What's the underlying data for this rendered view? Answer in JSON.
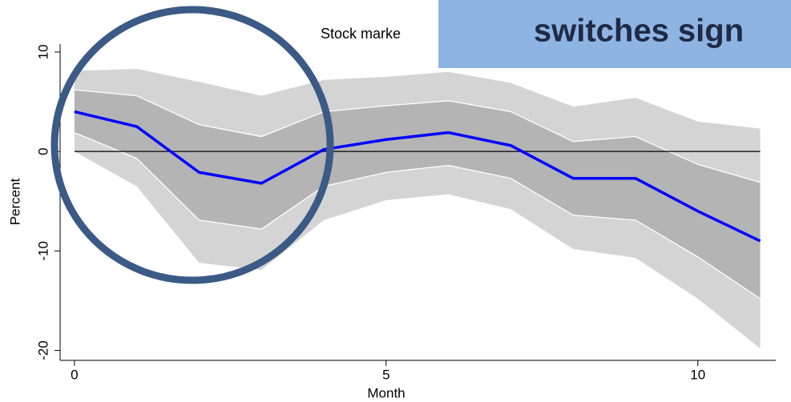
{
  "chart_data": {
    "type": "line",
    "title": "Stock marke",
    "x": [
      0,
      1,
      2,
      3,
      4,
      5,
      6,
      7,
      8,
      9,
      10,
      11
    ],
    "x_label": "Month",
    "y_label": "Percent",
    "series": [
      {
        "color": "#0000ff",
        "values": [
          4.0,
          2.5,
          -2.1,
          -3.2,
          0.2,
          1.2,
          1.9,
          0.6,
          -2.7,
          -2.7,
          -6.0,
          -9.0
        ]
      }
    ],
    "bands": [
      {
        "color": "#d4d4d4",
        "upper": [
          8.1,
          8.3,
          7.0,
          5.6,
          7.2,
          7.5,
          8.0,
          6.9,
          4.5,
          5.4,
          3.0,
          2.3
        ],
        "lower": [
          0,
          -3.5,
          -11.2,
          -11.9,
          -6.9,
          -4.9,
          -4.3,
          -5.8,
          -9.8,
          -10.7,
          -14.8,
          -19.8
        ]
      },
      {
        "color": "#b4b4b4",
        "upper": [
          6.2,
          5.6,
          2.7,
          1.5,
          4.0,
          4.6,
          5.1,
          4.0,
          1.0,
          1.5,
          -1.3,
          -3.1
        ],
        "lower": [
          1.9,
          -0.7,
          -6.9,
          -7.8,
          -3.5,
          -2.1,
          -1.4,
          -2.7,
          -6.4,
          -6.9,
          -10.6,
          -14.8
        ]
      }
    ],
    "reference_line": 0,
    "xlim": [
      -0.23,
      11.25
    ],
    "ylim": [
      -21,
      10.8
    ],
    "xticks": [
      0,
      5,
      10
    ],
    "yticks": [
      10,
      0,
      -10,
      -20
    ],
    "annotation": "switches sign"
  }
}
